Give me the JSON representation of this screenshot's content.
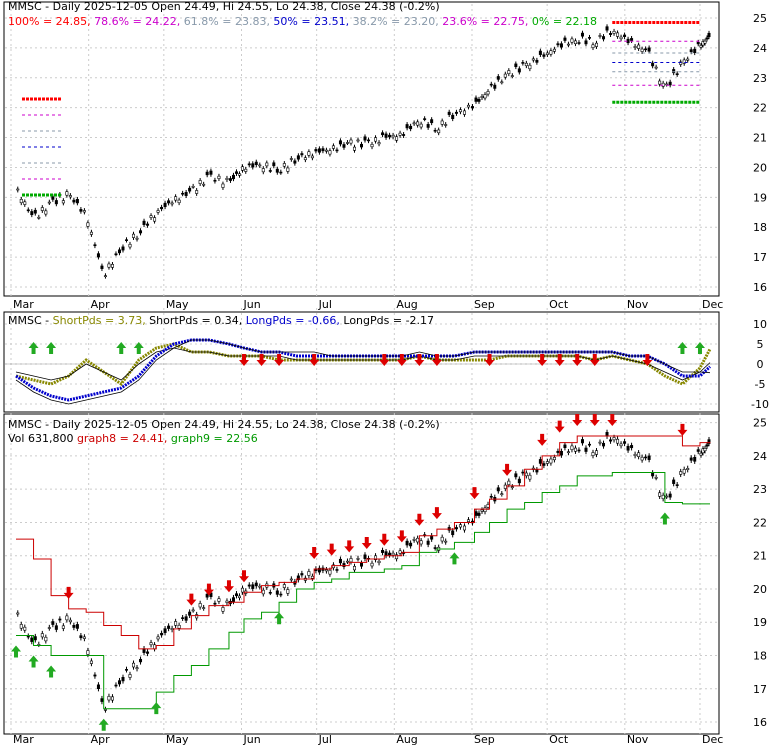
{
  "axis_labels": {
    "months": [
      "Mar",
      "Apr",
      "May",
      "Jun",
      "Jul",
      "Aug",
      "Sep",
      "Oct",
      "Nov",
      "Dec"
    ],
    "panel1_y_ticks": [
      "25",
      "24",
      "23",
      "22",
      "21",
      "20",
      "19",
      "18",
      "17",
      "16"
    ],
    "panel2_y_ticks": [
      "10",
      "5",
      "0",
      "-5",
      "-10"
    ],
    "panel3_y_ticks": [
      "25",
      "24",
      "23",
      "22",
      "21",
      "20",
      "19",
      "18",
      "17",
      "16"
    ]
  },
  "panel1": {
    "header": [
      {
        "text": "MMSC - Daily 2025-12-05 Open 24.49, Hi 24.55, Lo 24.38, Close 24.38 (-0.2%)",
        "color": "#000000"
      }
    ],
    "fib_legend": [
      {
        "text": "100% = 24.85,",
        "color": "#ff0000"
      },
      {
        "text": "78.6% = 24.22,",
        "color": "#cc00cc"
      },
      {
        "text": "61.8% = 23.83,",
        "color": "#8899aa"
      },
      {
        "text": "50% = 23.51,",
        "color": "#0000cc"
      },
      {
        "text": "38.2% = 23.20,",
        "color": "#8899aa"
      },
      {
        "text": "23.6% = 22.75,",
        "color": "#cc00cc"
      },
      {
        "text": "0% = 22.18",
        "color": "#00aa00"
      }
    ]
  },
  "panel2": {
    "legend": [
      {
        "text": "MMSC -",
        "color": "#000000"
      },
      {
        "text": "ShortPds = 3.73,",
        "color": "#888800"
      },
      {
        "text": "ShortPds = 0.34,",
        "color": "#000000"
      },
      {
        "text": "LongPds = -0.66,",
        "color": "#0000cc"
      },
      {
        "text": "LongPds = -2.17",
        "color": "#000000"
      }
    ]
  },
  "panel3": {
    "header": "MMSC - Daily 2025-12-05 Open 24.49, Hi 24.55, Lo 24.38, Close 24.38 (-0.2%)",
    "legend": [
      {
        "text": "Vol 631,800",
        "color": "#000000"
      },
      {
        "text": "graph8 = 24.41,",
        "color": "#cc0000"
      },
      {
        "text": "graph9 = 22.56",
        "color": "#009900"
      }
    ]
  },
  "chart_data": {
    "type": "line",
    "title": "MMSC - Daily 2025-12-05 Open 24.49, Hi 24.55, Lo 24.38, Close 24.38 (-0.2%)",
    "last_bar": {
      "date": "2025-12-05",
      "open": 24.49,
      "high": 24.55,
      "low": 24.38,
      "close": 24.38,
      "change_pct": -0.2,
      "volume": 631800
    },
    "x_range": [
      "2025-03-01",
      "2025-12-05"
    ],
    "price_ylim": [
      15.7,
      25.2
    ],
    "oscillator_ylim": [
      -12,
      12
    ],
    "price_series": {
      "name": "MMSC",
      "x": [
        "2025-03-03",
        "2025-03-10",
        "2025-03-17",
        "2025-03-24",
        "2025-03-31",
        "2025-04-07",
        "2025-04-14",
        "2025-04-21",
        "2025-04-28",
        "2025-05-05",
        "2025-05-12",
        "2025-05-19",
        "2025-05-27",
        "2025-06-02",
        "2025-06-09",
        "2025-06-16",
        "2025-06-23",
        "2025-06-30",
        "2025-07-07",
        "2025-07-14",
        "2025-07-21",
        "2025-07-28",
        "2025-08-04",
        "2025-08-11",
        "2025-08-18",
        "2025-08-25",
        "2025-09-02",
        "2025-09-08",
        "2025-09-15",
        "2025-09-22",
        "2025-09-29",
        "2025-10-06",
        "2025-10-13",
        "2025-10-20",
        "2025-10-27",
        "2025-11-03",
        "2025-11-10",
        "2025-11-17",
        "2025-11-24",
        "2025-12-01",
        "2025-12-05"
      ],
      "close": [
        19.3,
        18.3,
        18.8,
        19.1,
        18.4,
        16.4,
        17.3,
        17.8,
        18.5,
        18.9,
        19.2,
        19.7,
        19.5,
        20.0,
        20.1,
        19.9,
        20.3,
        20.5,
        20.6,
        20.8,
        20.8,
        21.0,
        21.1,
        21.6,
        21.3,
        21.8,
        22.1,
        22.6,
        23.1,
        23.4,
        23.7,
        24.1,
        24.3,
        24.2,
        24.6,
        24.2,
        23.9,
        22.6,
        23.5,
        24.1,
        24.38
      ]
    },
    "fibonacci": [
      {
        "level": "100%",
        "value": 24.85
      },
      {
        "level": "78.6%",
        "value": 24.22
      },
      {
        "level": "61.8%",
        "value": 23.83
      },
      {
        "level": "50%",
        "value": 23.51
      },
      {
        "level": "38.2%",
        "value": 23.2
      },
      {
        "level": "23.6%",
        "value": 22.75
      },
      {
        "level": "0%",
        "value": 22.18
      }
    ],
    "oscillator_series": [
      {
        "name": "ShortPds",
        "last": 3.73,
        "values": [
          -3,
          -4,
          -5,
          -3,
          1,
          -2,
          -5,
          1,
          4,
          5,
          3,
          3,
          2,
          2,
          2,
          1,
          1,
          1,
          1,
          1,
          1,
          1,
          1,
          2,
          1,
          1,
          1,
          1,
          2,
          2,
          2,
          2,
          2,
          1,
          2,
          1,
          0,
          -3,
          -5,
          -1,
          3.73
        ]
      },
      {
        "name": "ShortPds",
        "last": 0.34,
        "values": [
          -2,
          -3,
          -4,
          -3,
          0,
          -2,
          -4,
          0,
          3,
          4,
          3,
          3,
          2,
          2,
          2,
          2,
          1,
          1,
          1,
          1,
          1,
          1,
          1,
          2,
          1,
          1,
          2,
          2,
          2,
          2,
          2,
          2,
          2,
          1,
          2,
          1,
          0,
          -2,
          -4,
          -2,
          0.34
        ]
      },
      {
        "name": "LongPds",
        "last": -0.66,
        "values": [
          -3,
          -6,
          -8,
          -9,
          -8,
          -7,
          -6,
          -3,
          2,
          5,
          6,
          6,
          5,
          4,
          3,
          3,
          2,
          2,
          2,
          2,
          2,
          2,
          2,
          2,
          2,
          2,
          3,
          3,
          3,
          3,
          3,
          3,
          3,
          3,
          3,
          2,
          2,
          0,
          -3,
          -3,
          -0.66
        ]
      },
      {
        "name": "LongPds",
        "last": -2.17,
        "values": [
          -4,
          -7,
          -9,
          -10,
          -9,
          -8,
          -7,
          -4,
          1,
          4,
          6,
          6,
          5,
          4,
          3,
          3,
          3,
          3,
          2,
          2,
          2,
          2,
          2,
          3,
          2,
          2,
          3,
          3,
          3,
          3,
          3,
          3,
          3,
          3,
          3,
          2,
          2,
          0,
          -2,
          -2,
          -2.17
        ]
      }
    ],
    "channel_series": [
      {
        "name": "graph8",
        "last": 24.41,
        "values": [
          21.5,
          20.9,
          19.8,
          19.4,
          19.3,
          18.9,
          18.6,
          18.2,
          18.3,
          18.8,
          19.2,
          19.5,
          19.6,
          19.9,
          20.1,
          20.2,
          20.3,
          20.6,
          20.7,
          20.8,
          20.9,
          21.0,
          21.1,
          21.6,
          21.8,
          22.0,
          22.4,
          22.7,
          23.1,
          23.6,
          24.0,
          24.4,
          24.6,
          24.6,
          24.6,
          24.6,
          24.6,
          24.6,
          24.3,
          24.4,
          24.41
        ]
      },
      {
        "name": "graph9",
        "last": 22.56,
        "values": [
          18.6,
          18.3,
          18.0,
          18.0,
          18.0,
          16.4,
          16.4,
          16.4,
          16.9,
          17.4,
          17.7,
          18.2,
          18.7,
          19.1,
          19.3,
          19.6,
          20.0,
          20.2,
          20.3,
          20.5,
          20.5,
          20.6,
          20.7,
          21.1,
          21.2,
          21.4,
          21.7,
          22.0,
          22.4,
          22.6,
          22.9,
          23.1,
          23.4,
          23.4,
          23.5,
          23.5,
          23.5,
          22.6,
          22.56,
          22.56,
          22.56
        ]
      }
    ],
    "volume_last": 631800
  }
}
